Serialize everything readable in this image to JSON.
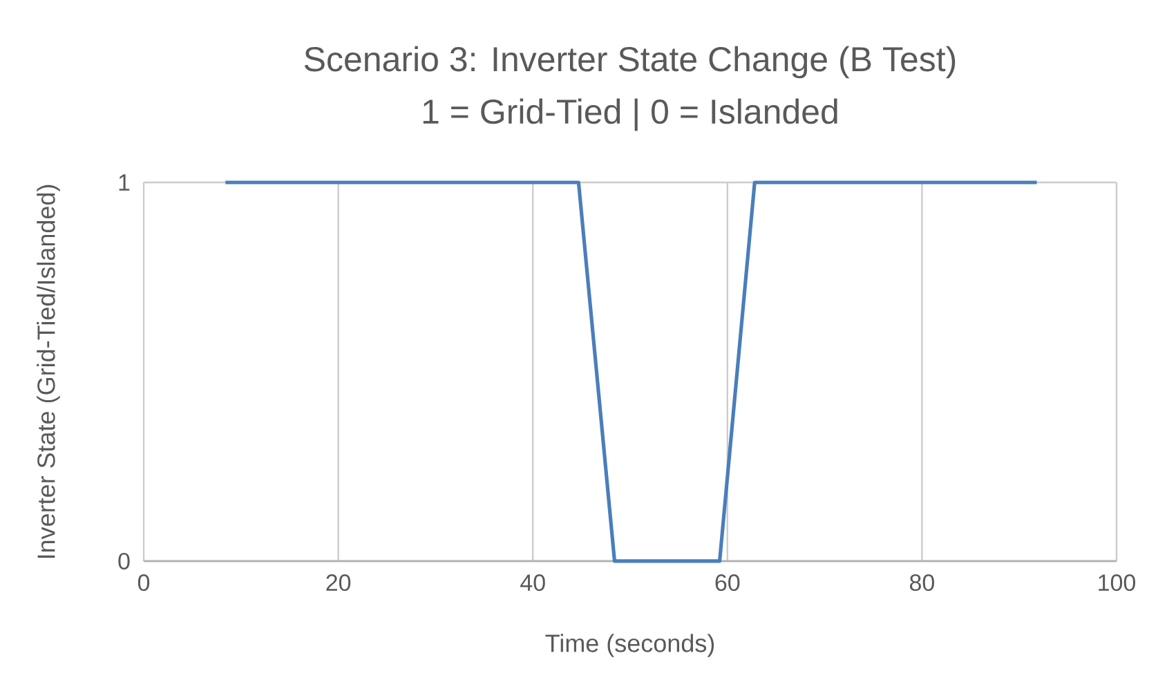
{
  "chart_data": {
    "type": "line",
    "title": "Scenario 3: Inverter State Change (B Test)",
    "subtitle": "1 = Grid-Tied | 0 = Islanded",
    "xlabel": "Time (seconds)",
    "ylabel": "Inverter State (Grid-Tied/Islanded)",
    "x": [
      8.4,
      44.7,
      48.4,
      59.2,
      62.8,
      91.8
    ],
    "series": [
      {
        "color": "#4a7ebb",
        "values": [
          1,
          1,
          0,
          0,
          1,
          1
        ]
      }
    ],
    "xlim": [
      0,
      100
    ],
    "xticks": [
      0,
      20,
      40,
      60,
      80,
      100
    ],
    "ylim": [
      0,
      1
    ],
    "yticks": [
      0,
      1
    ],
    "grid": true,
    "legend": false,
    "marker": "none",
    "line_style": "solid"
  }
}
